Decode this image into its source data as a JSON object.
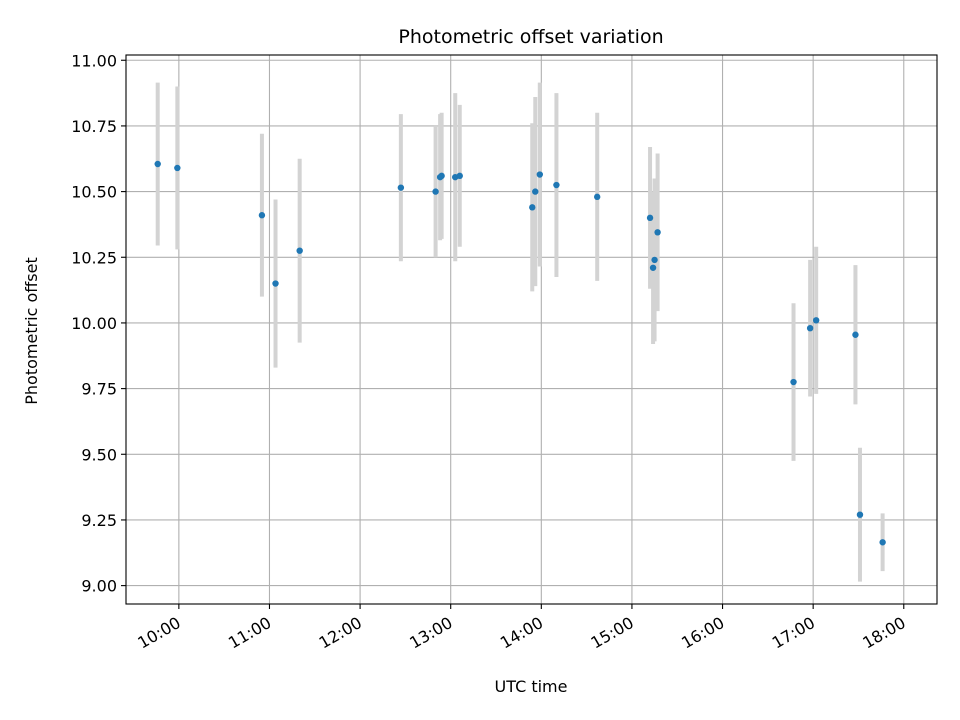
{
  "chart_data": {
    "type": "scatter",
    "title": "Photometric offset variation",
    "xlabel": "UTC time",
    "ylabel": "Photometric offset",
    "x_tick_labels": [
      "10:00",
      "11:00",
      "12:00",
      "13:00",
      "14:00",
      "15:00",
      "16:00",
      "17:00",
      "18:00"
    ],
    "y_tick_labels": [
      "9.00",
      "9.25",
      "9.50",
      "9.75",
      "10.00",
      "10.25",
      "10.50",
      "10.75",
      "11.00"
    ],
    "y_ticks": [
      9.0,
      9.25,
      9.5,
      9.75,
      10.0,
      10.25,
      10.5,
      10.75,
      11.0
    ],
    "xlim": [
      "09:25",
      "18:22"
    ],
    "ylim": [
      8.93,
      11.02
    ],
    "grid": true,
    "colors": {
      "point": "#1f77b4",
      "errorbar": "#d3d3d3",
      "grid": "#b0b0b0"
    },
    "points": [
      {
        "x": "09:46",
        "y": 10.605,
        "yerr": 0.31
      },
      {
        "x": "09:59",
        "y": 10.59,
        "yerr": 0.31
      },
      {
        "x": "10:55",
        "y": 10.41,
        "yerr": 0.31
      },
      {
        "x": "11:04",
        "y": 10.15,
        "yerr": 0.32
      },
      {
        "x": "11:20",
        "y": 10.275,
        "yerr": 0.35
      },
      {
        "x": "12:27",
        "y": 10.515,
        "yerr": 0.28
      },
      {
        "x": "12:50",
        "y": 10.5,
        "yerr": 0.25
      },
      {
        "x": "12:53",
        "y": 10.555,
        "yerr": 0.24
      },
      {
        "x": "12:54",
        "y": 10.56,
        "yerr": 0.24
      },
      {
        "x": "13:03",
        "y": 10.555,
        "yerr": 0.32
      },
      {
        "x": "13:06",
        "y": 10.56,
        "yerr": 0.27
      },
      {
        "x": "13:54",
        "y": 10.44,
        "yerr": 0.32
      },
      {
        "x": "13:56",
        "y": 10.5,
        "yerr": 0.36
      },
      {
        "x": "13:59",
        "y": 10.565,
        "yerr": 0.35
      },
      {
        "x": "14:10",
        "y": 10.525,
        "yerr": 0.35
      },
      {
        "x": "14:37",
        "y": 10.48,
        "yerr": 0.32
      },
      {
        "x": "15:12",
        "y": 10.4,
        "yerr": 0.27
      },
      {
        "x": "15:14",
        "y": 10.21,
        "yerr": 0.29
      },
      {
        "x": "15:15",
        "y": 10.24,
        "yerr": 0.31
      },
      {
        "x": "15:17",
        "y": 10.345,
        "yerr": 0.3
      },
      {
        "x": "16:47",
        "y": 9.775,
        "yerr": 0.3
      },
      {
        "x": "16:58",
        "y": 9.98,
        "yerr": 0.26
      },
      {
        "x": "17:02",
        "y": 10.01,
        "yerr": 0.28
      },
      {
        "x": "17:28",
        "y": 9.955,
        "yerr": 0.265
      },
      {
        "x": "17:31",
        "y": 9.27,
        "yerr": 0.255
      },
      {
        "x": "17:46",
        "y": 9.165,
        "yerr": 0.11
      }
    ]
  }
}
